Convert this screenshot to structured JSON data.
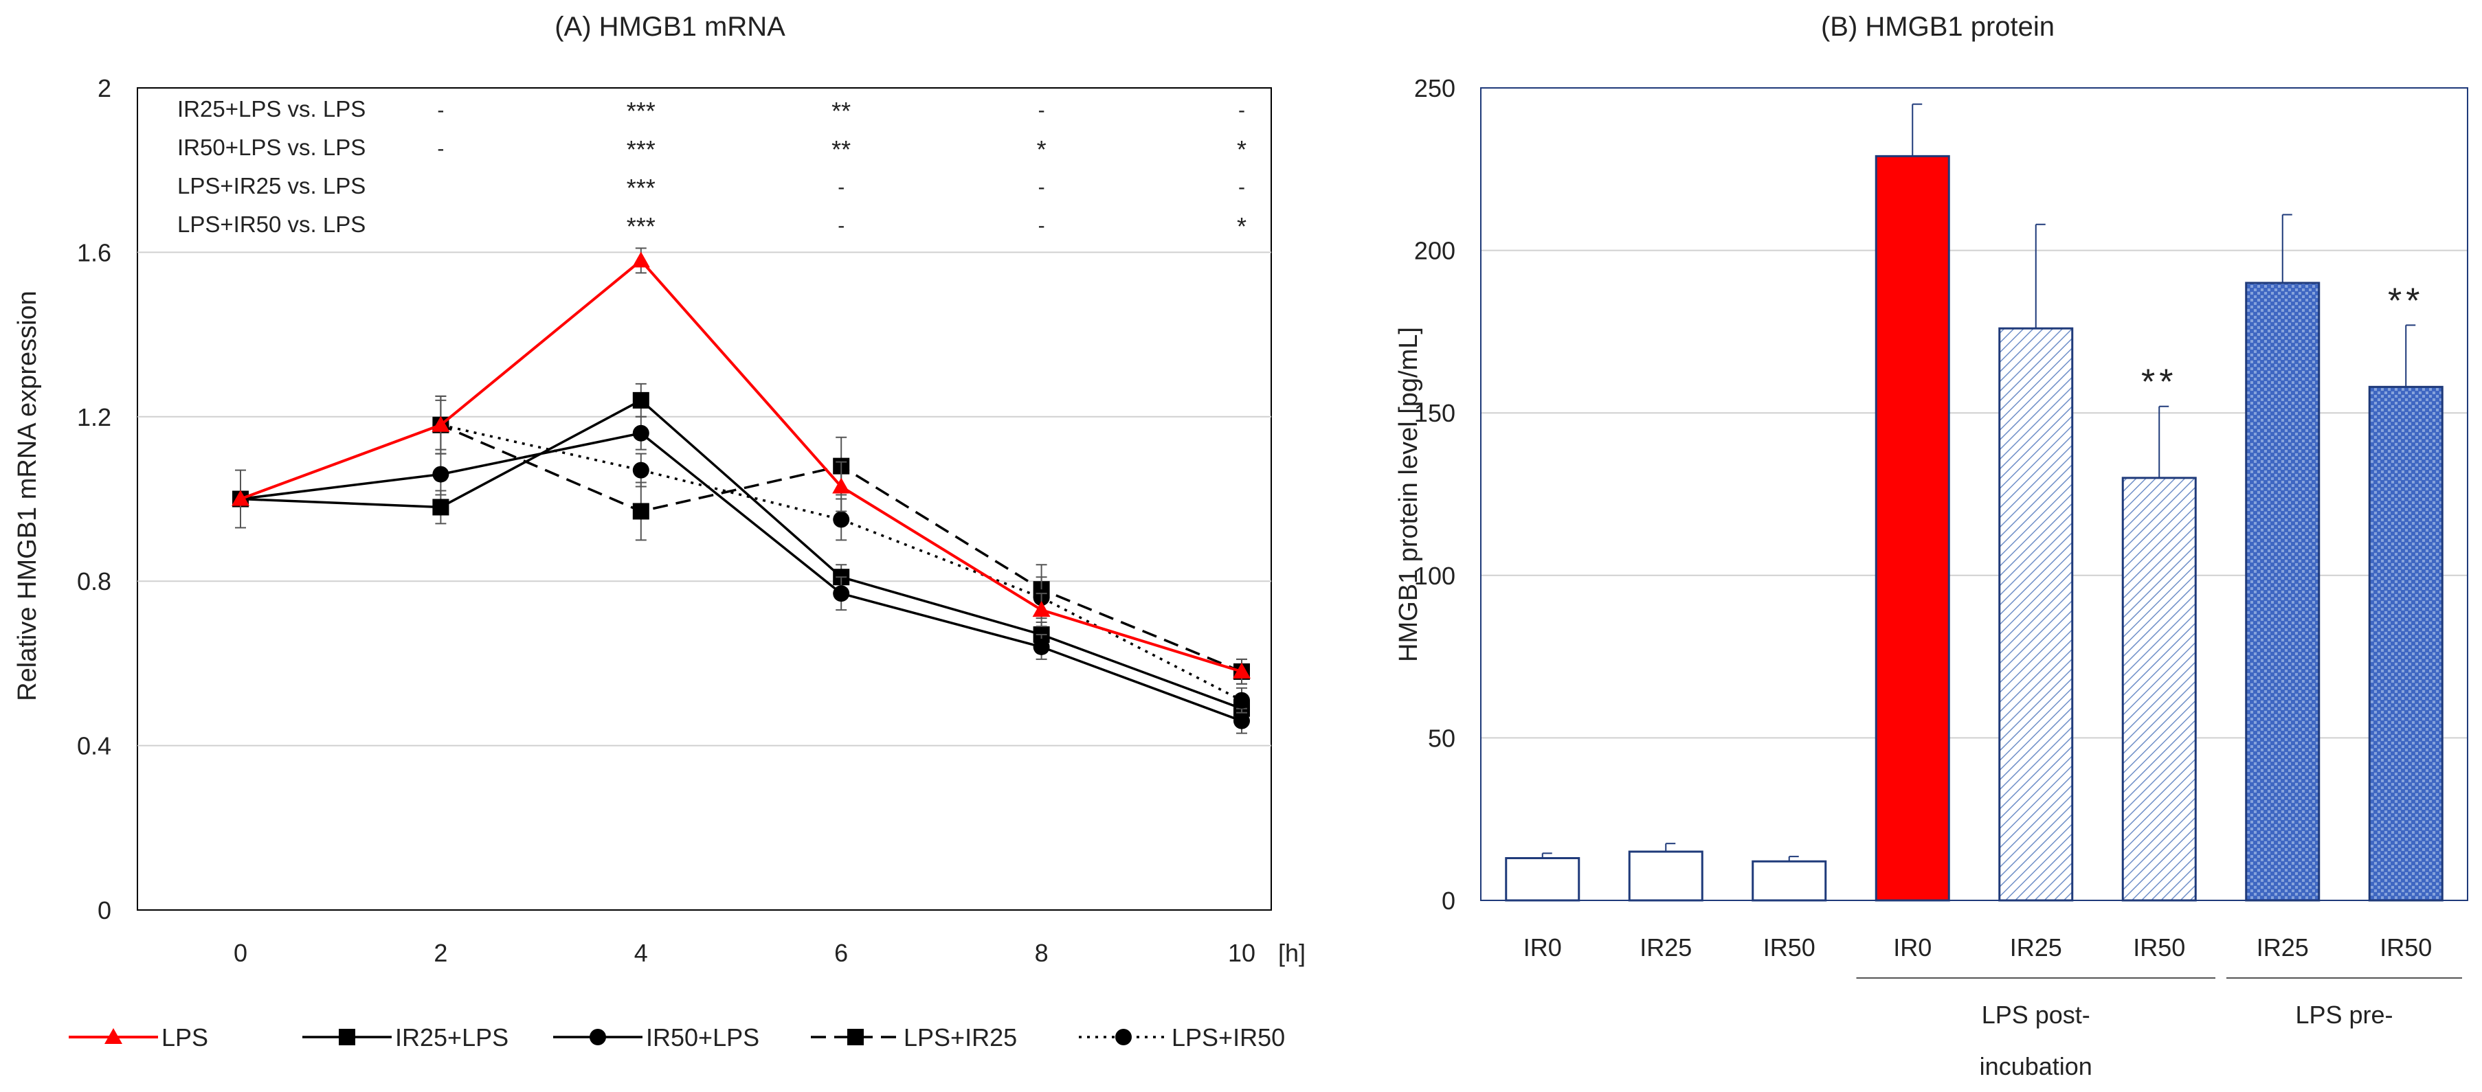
{
  "chart_data": [
    {
      "type": "line",
      "title": "(A) HMGB1 mRNA",
      "xlabel": "[h]",
      "ylabel": "Relative HMGB1 mRNA expression",
      "x": [
        0,
        2,
        4,
        6,
        8,
        10
      ],
      "x_tick_labels": [
        "0",
        "2",
        "4",
        "6",
        "8",
        "10"
      ],
      "ylim": [
        0,
        2
      ],
      "y_ticks": [
        0,
        0.4,
        0.8,
        1.2,
        1.6,
        2
      ],
      "y_tick_labels": [
        "0",
        "0.4",
        "0.8",
        "1.2",
        "1.6",
        "2"
      ],
      "grid": "horizontal",
      "series": [
        {
          "name": "LPS",
          "color": "#ff0000",
          "marker": "triangle",
          "dash": "solid",
          "values": [
            1.0,
            1.18,
            1.58,
            1.03,
            0.73,
            0.58
          ],
          "errors": [
            0.07,
            0.07,
            0.03,
            0.06,
            0.04,
            0.03
          ]
        },
        {
          "name": "IR25+LPS",
          "color": "#000000",
          "marker": "square",
          "dash": "solid",
          "values": [
            1.0,
            0.98,
            1.24,
            0.81,
            0.67,
            0.49
          ],
          "errors": [
            0.0,
            0.04,
            0.04,
            0.03,
            0.03,
            0.03
          ]
        },
        {
          "name": "IR50+LPS",
          "color": "#000000",
          "marker": "circle",
          "dash": "solid",
          "values": [
            1.0,
            1.06,
            1.16,
            0.77,
            0.64,
            0.46
          ],
          "errors": [
            0.0,
            0.05,
            0.04,
            0.04,
            0.03,
            0.03
          ]
        },
        {
          "name": "LPS+IR25",
          "color": "#000000",
          "marker": "square",
          "dash": "dashed",
          "values": [
            1.0,
            1.18,
            0.97,
            1.08,
            0.78,
            0.58
          ],
          "errors": [
            0.0,
            0.07,
            0.07,
            0.07,
            0.06,
            0.03
          ]
        },
        {
          "name": "LPS+IR50",
          "color": "#000000",
          "marker": "circle",
          "dash": "dotted",
          "values": [
            1.0,
            1.18,
            1.07,
            0.95,
            0.76,
            0.51
          ],
          "errors": [
            0.0,
            0.06,
            0.04,
            0.05,
            0.05,
            0.03
          ]
        }
      ],
      "significance": {
        "rows": [
          {
            "label": "IR25+LPS vs. LPS",
            "marks": [
              "-",
              "***",
              "**",
              "-",
              "-"
            ]
          },
          {
            "label": "IR50+LPS vs. LPS",
            "marks": [
              "-",
              "***",
              "**",
              "*",
              "*"
            ]
          },
          {
            "label": "LPS+IR25 vs. LPS",
            "marks": [
              "",
              "***",
              "-",
              "-",
              "-"
            ]
          },
          {
            "label": "LPS+IR50 vs. LPS",
            "marks": [
              "",
              "***",
              "-",
              "-",
              "*"
            ]
          }
        ],
        "x": [
          2,
          4,
          6,
          8,
          10
        ]
      }
    },
    {
      "type": "bar",
      "title": "(B) HMGB1 protein",
      "ylabel": "HMGB1 protein level [pg/mL]",
      "categories": [
        "IR0",
        "IR25",
        "IR50",
        "IR0",
        "IR25",
        "IR50",
        "IR25",
        "IR50"
      ],
      "values": [
        13,
        15,
        12,
        229,
        176,
        130,
        190,
        158
      ],
      "errors": [
        1.5,
        2.5,
        1.5,
        16,
        32,
        22,
        21,
        19
      ],
      "fills": [
        "white",
        "white",
        "white",
        "red",
        "lightHatch",
        "lightHatch",
        "blueGrid",
        "blueGrid"
      ],
      "annotations": [
        "",
        "",
        "",
        "",
        "",
        "**",
        "",
        "**"
      ],
      "groups": [
        {
          "label": "LPS post-incubation",
          "line1": "LPS post-",
          "line2": "incubation",
          "start": 3,
          "end": 5
        },
        {
          "label": "LPS pre-",
          "line1": "LPS pre-",
          "line2": "",
          "start": 6,
          "end": 7
        }
      ],
      "ylim": [
        0,
        250
      ],
      "y_ticks": [
        0,
        50,
        100,
        150,
        200,
        250
      ],
      "y_tick_labels": [
        "0",
        "50",
        "100",
        "150",
        "200",
        "250"
      ],
      "grid": "horizontal"
    }
  ]
}
